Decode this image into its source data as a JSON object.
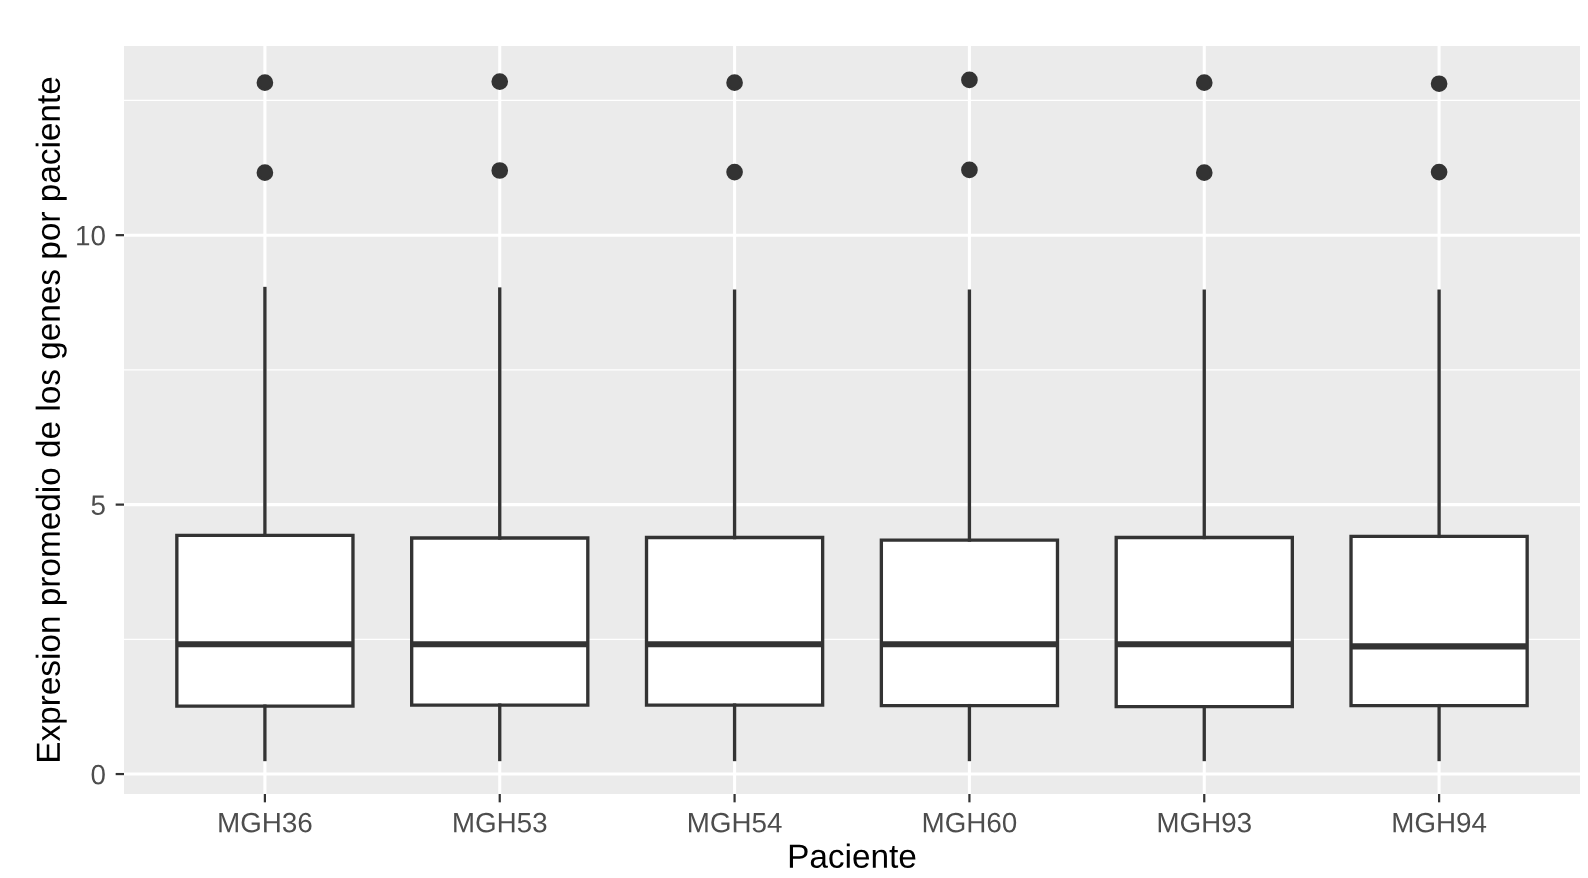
{
  "chart_data": {
    "type": "box",
    "xlabel": "Paciente",
    "ylabel": "Expresion promedio de los genes por paciente",
    "categories": [
      "MGH36",
      "MGH53",
      "MGH54",
      "MGH60",
      "MGH93",
      "MGH94"
    ],
    "boxes": [
      {
        "low": 0.27,
        "q1": 1.26,
        "median": 2.41,
        "q3": 4.43,
        "high": 9.01,
        "outliers": [
          11.16,
          12.83
        ]
      },
      {
        "low": 0.27,
        "q1": 1.28,
        "median": 2.41,
        "q3": 4.38,
        "high": 9.0,
        "outliers": [
          11.2,
          12.85
        ]
      },
      {
        "low": 0.27,
        "q1": 1.28,
        "median": 2.41,
        "q3": 4.39,
        "high": 8.96,
        "outliers": [
          11.17,
          12.83
        ]
      },
      {
        "low": 0.27,
        "q1": 1.27,
        "median": 2.41,
        "q3": 4.34,
        "high": 8.96,
        "outliers": [
          11.21,
          12.88
        ]
      },
      {
        "low": 0.27,
        "q1": 1.25,
        "median": 2.41,
        "q3": 4.39,
        "high": 8.96,
        "outliers": [
          11.16,
          12.83
        ]
      },
      {
        "low": 0.27,
        "q1": 1.27,
        "median": 2.37,
        "q3": 4.41,
        "high": 8.96,
        "outliers": [
          11.17,
          12.81
        ]
      }
    ],
    "color": "#ffffff",
    "ylim": [
      -0.37,
      13.51
    ],
    "yticks": [
      0,
      5,
      10
    ],
    "grid": true
  }
}
